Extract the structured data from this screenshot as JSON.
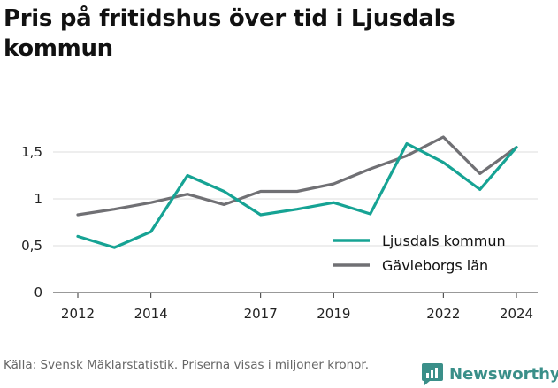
{
  "title": "Pris på fritidshus över tid i Ljusdals kommun",
  "source": "Källa: Svensk Mäklarstatistik. Priserna visas i miljoner kronor.",
  "brand": {
    "name": "Newsworthy",
    "icon": "newsworthy-logo-icon",
    "color": "#3a8f89"
  },
  "chart_data": {
    "type": "line",
    "title": "Pris på fritidshus över tid i Ljusdals kommun",
    "xlabel": "",
    "ylabel": "",
    "xlim": [
      2012,
      2024
    ],
    "ylim": [
      0,
      1.5
    ],
    "x_ticks": [
      2012,
      2014,
      2017,
      2019,
      2022,
      2024
    ],
    "x_tick_labels": [
      "2012",
      "2014",
      "2017",
      "2019",
      "2022",
      "2024"
    ],
    "y_ticks": [
      0,
      0.5,
      1,
      1.5
    ],
    "y_tick_labels": [
      "0",
      "0,5",
      "1",
      "1,5"
    ],
    "grid": "horizontal",
    "legend": "right",
    "x": [
      2012,
      2013,
      2014,
      2015,
      2016,
      2017,
      2018,
      2019,
      2020,
      2021,
      2022,
      2023,
      2024
    ],
    "series": [
      {
        "name": "Ljusdals kommun",
        "color": "#16a394",
        "values": [
          0.6,
          0.48,
          0.65,
          1.25,
          1.08,
          0.83,
          0.89,
          0.96,
          0.84,
          1.59,
          1.39,
          1.1,
          1.55
        ]
      },
      {
        "name": "Gävleborgs län",
        "color": "#707074",
        "values": [
          0.83,
          0.89,
          0.96,
          1.05,
          0.94,
          1.08,
          1.08,
          1.16,
          1.32,
          1.46,
          1.66,
          1.27,
          1.55
        ]
      }
    ]
  }
}
